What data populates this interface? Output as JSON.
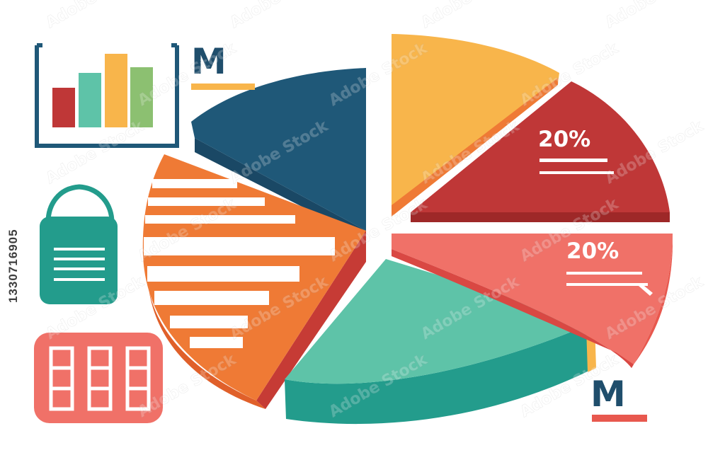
{
  "labels": {
    "percent_upper": "20%",
    "percent_lower": "20%",
    "letter_top": "M",
    "letter_bottom": "M"
  },
  "stock_id": "1330716905",
  "watermark": "Adobe Stock",
  "colors": {
    "navy": "#1f5878",
    "yellow": "#f8b54b",
    "red": "#bf3737",
    "coral": "#f07168",
    "teal": "#5ec3a8",
    "teal_dark": "#239c8c",
    "orange": "#ef7a35",
    "green": "#8cc071"
  }
}
